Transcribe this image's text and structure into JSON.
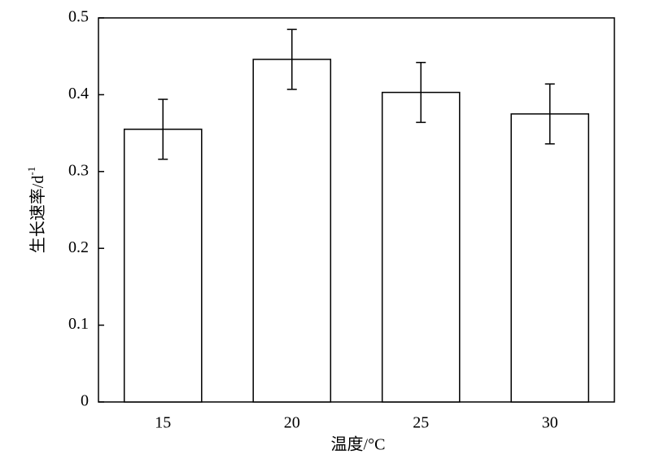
{
  "chart_data": {
    "type": "bar",
    "xlabel": "温度/°C",
    "ylabel": {
      "text": "生长速率/d",
      "superscript": "-1"
    },
    "categories": [
      "15",
      "20",
      "25",
      "30"
    ],
    "values": [
      0.355,
      0.446,
      0.403,
      0.375
    ],
    "errors": [
      0.039,
      0.039,
      0.039,
      0.039
    ],
    "color": "#ffffff",
    "ylim": [
      0,
      0.5
    ],
    "yticks": [
      0,
      0.1,
      0.2,
      0.3,
      0.4,
      0.5
    ],
    "grid": false
  }
}
